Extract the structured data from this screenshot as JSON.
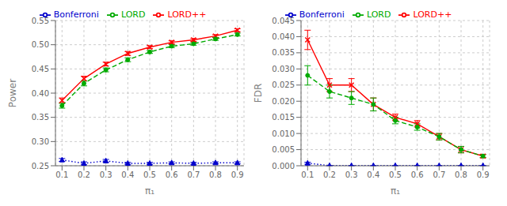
{
  "chart_data": [
    {
      "type": "line",
      "xlabel": "π₁",
      "ylabel": "Power",
      "x": [
        0.1,
        0.2,
        0.3,
        0.4,
        0.5,
        0.6,
        0.7,
        0.8,
        0.9
      ],
      "xlim": [
        0.07,
        0.93
      ],
      "xticks": [
        0.1,
        0.2,
        0.3,
        0.4,
        0.5,
        0.6,
        0.7,
        0.8,
        0.9
      ],
      "ylim": [
        0.25,
        0.55
      ],
      "yticks": [
        0.25,
        {
          "value": 0.3,
          "label": "0.30"
        },
        0.35,
        {
          "value": 0.4,
          "label": "0.40"
        },
        0.45,
        {
          "value": 0.5,
          "label": "0.50"
        },
        0.55
      ],
      "grid": true,
      "legend": "top",
      "series": [
        {
          "name": "LORD++",
          "color": "#ff0000",
          "line_style": "solid",
          "marker": "x",
          "values": [
            0.385,
            0.43,
            0.46,
            0.482,
            0.495,
            0.505,
            0.51,
            0.518,
            0.53
          ],
          "errors": [
            0.005,
            0.005,
            0.004,
            0.004,
            0.003,
            0.003,
            0.003,
            0.003,
            0.003
          ]
        },
        {
          "name": "LORD",
          "color": "#00aa00",
          "line_style": "dashed",
          "marker": "o",
          "values": [
            0.374,
            0.42,
            0.448,
            0.469,
            0.485,
            0.497,
            0.502,
            0.512,
            0.521
          ],
          "errors": [
            0.005,
            0.005,
            0.004,
            0.004,
            0.003,
            0.003,
            0.003,
            0.003,
            0.003
          ]
        },
        {
          "name": "Bonferroni",
          "color": "#0000cc",
          "line_style": "dotted",
          "marker": "^",
          "values": [
            0.262,
            0.255,
            0.26,
            0.255,
            0.255,
            0.256,
            0.255,
            0.256,
            0.256
          ],
          "errors": [
            0.003,
            0.003,
            0.003,
            0.002,
            0.002,
            0.002,
            0.002,
            0.002,
            0.002
          ]
        }
      ]
    },
    {
      "type": "line",
      "xlabel": "π₁",
      "ylabel": "FDR",
      "x": [
        0.1,
        0.2,
        0.3,
        0.4,
        0.5,
        0.6,
        0.7,
        0.8,
        0.9
      ],
      "xlim": [
        0.07,
        0.93
      ],
      "xticks": [
        0.1,
        0.2,
        0.3,
        0.4,
        0.5,
        0.6,
        0.7,
        0.8,
        0.9
      ],
      "ylim": [
        0.0,
        0.045
      ],
      "yticks": [
        {
          "value": 0,
          "label": "0.000"
        },
        0.005,
        {
          "value": 0.01,
          "label": "0.010"
        },
        0.015,
        {
          "value": 0.02,
          "label": "0.020"
        },
        0.025,
        {
          "value": 0.03,
          "label": "0.030"
        },
        0.035,
        {
          "value": 0.04,
          "label": "0.040"
        },
        0.045
      ],
      "grid": true,
      "legend": "top",
      "series": [
        {
          "name": "LORD++",
          "color": "#ff0000",
          "line_style": "solid",
          "marker": "x",
          "values": [
            0.039,
            0.025,
            0.025,
            0.019,
            0.015,
            0.013,
            0.009,
            0.005,
            0.003
          ],
          "errors": [
            0.003,
            0.002,
            0.002,
            0.002,
            0.001,
            0.001,
            0.001,
            0.001,
            0.0005
          ]
        },
        {
          "name": "LORD",
          "color": "#00aa00",
          "line_style": "dashed",
          "marker": "o",
          "values": [
            0.028,
            0.023,
            0.021,
            0.019,
            0.014,
            0.012,
            0.009,
            0.005,
            0.003
          ],
          "errors": [
            0.003,
            0.002,
            0.002,
            0.002,
            0.001,
            0.001,
            0.001,
            0.001,
            0.0005
          ]
        },
        {
          "name": "Bonferroni",
          "color": "#0000cc",
          "line_style": "dotted",
          "marker": "^",
          "values": [
            0.0008,
            5e-05,
            5e-05,
            5e-05,
            5e-05,
            5e-05,
            5e-05,
            5e-05,
            5e-05
          ],
          "errors": [
            0.0003,
            5e-05,
            5e-05,
            5e-05,
            5e-05,
            5e-05,
            5e-05,
            5e-05,
            5e-05
          ]
        }
      ]
    }
  ]
}
